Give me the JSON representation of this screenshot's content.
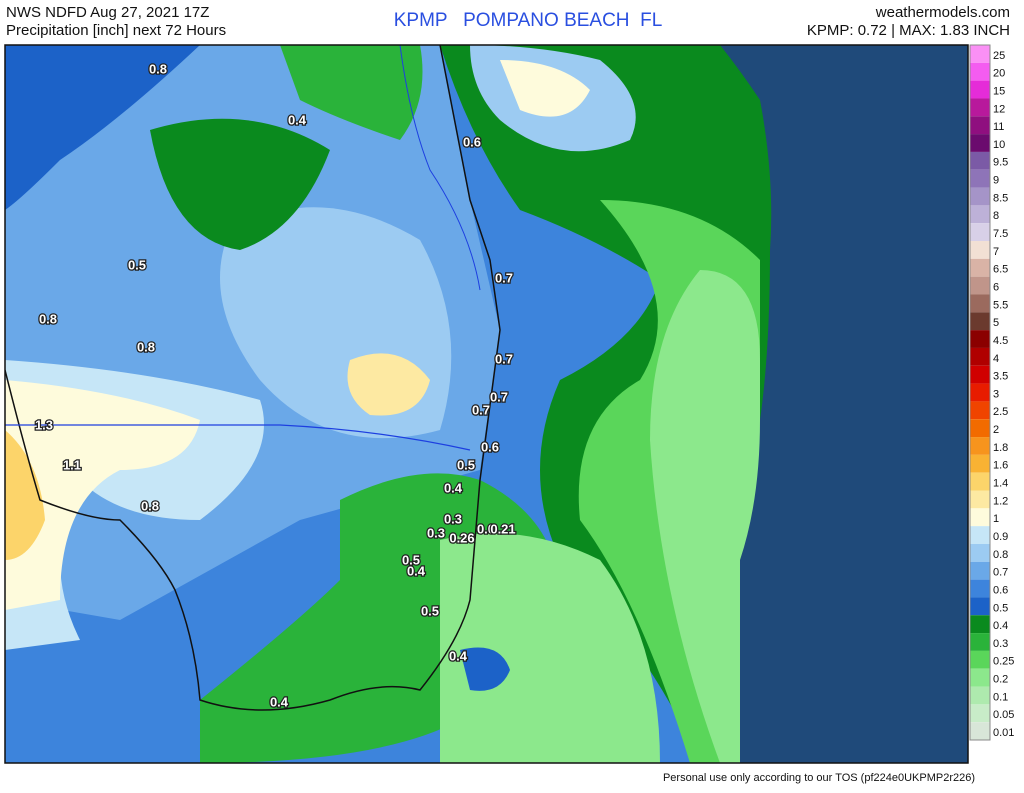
{
  "header": {
    "left_line1": "NWS NDFD Aug 27, 2021 17Z",
    "left_line2": "Precipitation [inch] next 72 Hours",
    "center": "KPMP   POMPANO BEACH  FL",
    "right_line1": "weathermodels.com",
    "right_line2": "KPMP: 0.72 | MAX: 1.83 INCH"
  },
  "map_labels": [
    "0.8",
    "0.4",
    "0.6",
    "0.5",
    "0.7",
    "0.8",
    "0.8",
    "0.7",
    "0.7",
    "0.7",
    "1.3",
    "0.6",
    "1.1",
    "0.5",
    "0.4",
    "0.8",
    "0.3",
    "0.3",
    "0.0",
    "0.21",
    "0.26",
    "0.5",
    "0.4",
    "0.5",
    "0.4",
    "0.4"
  ],
  "colorbar": {
    "labels": [
      "25",
      "20",
      "15",
      "12",
      "11",
      "10",
      "9.5",
      "9",
      "8.5",
      "8",
      "7.5",
      "7",
      "6.5",
      "6",
      "5.5",
      "5",
      "4.5",
      "4",
      "3.5",
      "3",
      "2.5",
      "2",
      "1.8",
      "1.6",
      "1.4",
      "1.2",
      "1",
      "0.9",
      "0.8",
      "0.7",
      "0.6",
      "0.5",
      "0.4",
      "0.3",
      "0.25",
      "0.2",
      "0.1",
      "0.05",
      "0.01"
    ],
    "colors": [
      "#fa90f5",
      "#f45cf0",
      "#e52cd8",
      "#b8199c",
      "#8f0f7f",
      "#6b0b6e",
      "#7b5aa6",
      "#8e74b8",
      "#a594c8",
      "#bdb1d8",
      "#d8d0e8",
      "#f2e0d4",
      "#d9b3a6",
      "#c0958a",
      "#9b6a5e",
      "#6b3a2e",
      "#8b0000",
      "#b00000",
      "#d00000",
      "#e81c00",
      "#f04400",
      "#f26b00",
      "#f7941d",
      "#f9b233",
      "#fcd46a",
      "#fde9a2",
      "#fefbdc",
      "#c6e6f7",
      "#9ccbf2",
      "#6aa8e8",
      "#3d84dc",
      "#1c62c8",
      "#0a8a1e",
      "#2ab33a",
      "#5ad65a",
      "#8ce88c",
      "#aeeaae",
      "#c8ecc8",
      "#d8e6d8"
    ]
  },
  "footer": "Personal use only according to our TOS (pf224e0UKPMP2r226)"
}
